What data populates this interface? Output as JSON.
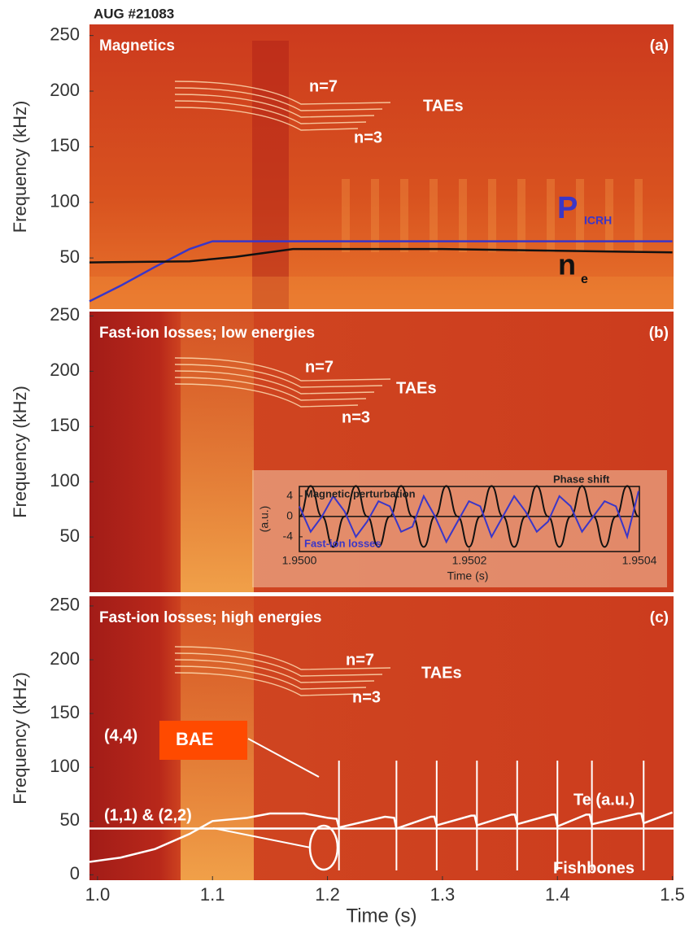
{
  "title": "AUG #21083",
  "chart_data": [
    {
      "type": "spectrogram",
      "title": "Magnetics",
      "panel_label": "(a)",
      "ylabel": "Frequency (kHz)",
      "xlim": [
        0.993,
        1.501
      ],
      "ylim": [
        4,
        260
      ],
      "yticks": [
        50,
        100,
        150,
        200,
        250
      ],
      "annotations": [
        "n=7",
        "TAEs",
        "n=3",
        "P",
        "ICRH",
        "n",
        "e"
      ],
      "series": [
        {
          "color": "#3a36c8",
          "x": [
            0.993,
            1.02,
            1.05,
            1.08,
            1.1,
            1.5
          ],
          "values": [
            11,
            25,
            42,
            58,
            65,
            65
          ]
        },
        {
          "color": "#111111",
          "x": [
            0.993,
            1.08,
            1.12,
            1.17,
            1.3,
            1.5
          ],
          "values": [
            46,
            47,
            51,
            58,
            58,
            55
          ]
        }
      ]
    },
    {
      "type": "spectrogram",
      "title": "Fast-ion losses; low energies",
      "panel_label": "(b)",
      "ylabel": "Frequency (kHz)",
      "xlim": [
        0.993,
        1.501
      ],
      "ylim": [
        0,
        254
      ],
      "yticks": [
        50,
        100,
        150,
        200,
        250
      ],
      "annotations": [
        "n=7",
        "TAEs",
        "n=3"
      ],
      "series": []
    },
    {
      "type": "spectrogram",
      "title": "Fast-ion losses; high energies",
      "panel_label": "(c)",
      "ylabel": "Frequency (kHz)",
      "xlabel": "Time (s)",
      "xlim": [
        0.993,
        1.501
      ],
      "ylim": [
        -5,
        259
      ],
      "yticks": [
        0,
        50,
        100,
        150,
        200,
        250
      ],
      "xticks": [
        {
          "value": 1,
          "label": "1.0"
        },
        {
          "value": 1.1,
          "label": "1.1"
        },
        {
          "value": 1.2,
          "label": "1.2"
        },
        {
          "value": 1.3,
          "label": "1.3"
        },
        {
          "value": 1.4,
          "label": "1.4"
        },
        {
          "value": 1.5,
          "label": "1.5"
        }
      ],
      "annotations": [
        "n=7",
        "TAEs",
        "n=3",
        "(4,4)",
        "BAE",
        "(1,1) & (2,2)",
        "Te (a.u.)",
        "Fishbones"
      ],
      "series": [
        {
          "color": "#ffffff",
          "x": [
            0.993,
            1.02,
            1.05,
            1.08,
            1.1,
            1.13,
            1.15,
            1.18,
            1.2,
            1.208,
            1.21,
            1.25,
            1.258,
            1.26,
            1.29,
            1.293,
            1.295,
            1.325,
            1.328,
            1.33,
            1.36,
            1.363,
            1.365,
            1.395,
            1.398,
            1.4,
            1.425,
            1.428,
            1.43,
            1.47,
            1.473,
            1.475,
            1.5
          ],
          "values": [
            12,
            16,
            24,
            38,
            50,
            53,
            57,
            57,
            53,
            52,
            44,
            54,
            53,
            43,
            54,
            54,
            46,
            55,
            55,
            46,
            56,
            56,
            47,
            56,
            56,
            45,
            56,
            56,
            47,
            57,
            57,
            48,
            58
          ]
        },
        {
          "color": "#ffffff",
          "x": [
            0.993,
            1.501
          ],
          "values": [
            43,
            43
          ]
        }
      ]
    },
    {
      "type": "line",
      "ylabel": "(a.u.)",
      "xlabel": "Time (s)",
      "xlim": [
        1.95,
        1.9504
      ],
      "ylim": [
        -6.9,
        5.9
      ],
      "yticks": [
        4,
        0,
        -4
      ],
      "xticks": [
        {
          "value": 1.95,
          "label": "1.9500"
        },
        {
          "value": 1.9502,
          "label": "1.9502"
        },
        {
          "value": 1.9504,
          "label": "1.9504"
        }
      ],
      "annotations": [
        "Phase shift"
      ],
      "x": [
        1.95,
        1.9500133,
        1.9500266,
        1.9500399,
        1.9500532,
        1.9500665,
        1.9500798,
        1.9500931,
        1.9501064,
        1.9501197,
        1.950133,
        1.9501463,
        1.9501596,
        1.9501729,
        1.9501862,
        1.9501995,
        1.9502128,
        1.9502261,
        1.9502394,
        1.9502527,
        1.950266,
        1.9502793,
        1.9502926,
        1.9503059,
        1.9503192,
        1.9503325,
        1.9503458,
        1.9503591,
        1.9503724,
        1.9503857,
        1.950399
      ],
      "series": [
        {
          "name": "Magnetic perturbation",
          "color": "#111111",
          "values": [
            0,
            6,
            0,
            -6,
            0,
            6,
            0,
            -6,
            0,
            6,
            0,
            -6,
            0,
            6,
            0,
            -6,
            0,
            6,
            0,
            -6,
            0,
            6,
            0,
            -6,
            0,
            6,
            0,
            -6,
            0,
            6,
            0
          ]
        },
        {
          "name": "Fast-ion losses",
          "color": "#3a36c8",
          "values": [
            2,
            -3,
            0,
            4,
            1,
            -4,
            -1,
            3,
            2,
            -3,
            -2,
            4,
            0,
            -5,
            -1,
            3,
            2,
            -4,
            0,
            4,
            1,
            -3,
            -1,
            4,
            2,
            -3,
            0,
            3,
            2,
            -4,
            5
          ]
        }
      ]
    }
  ]
}
